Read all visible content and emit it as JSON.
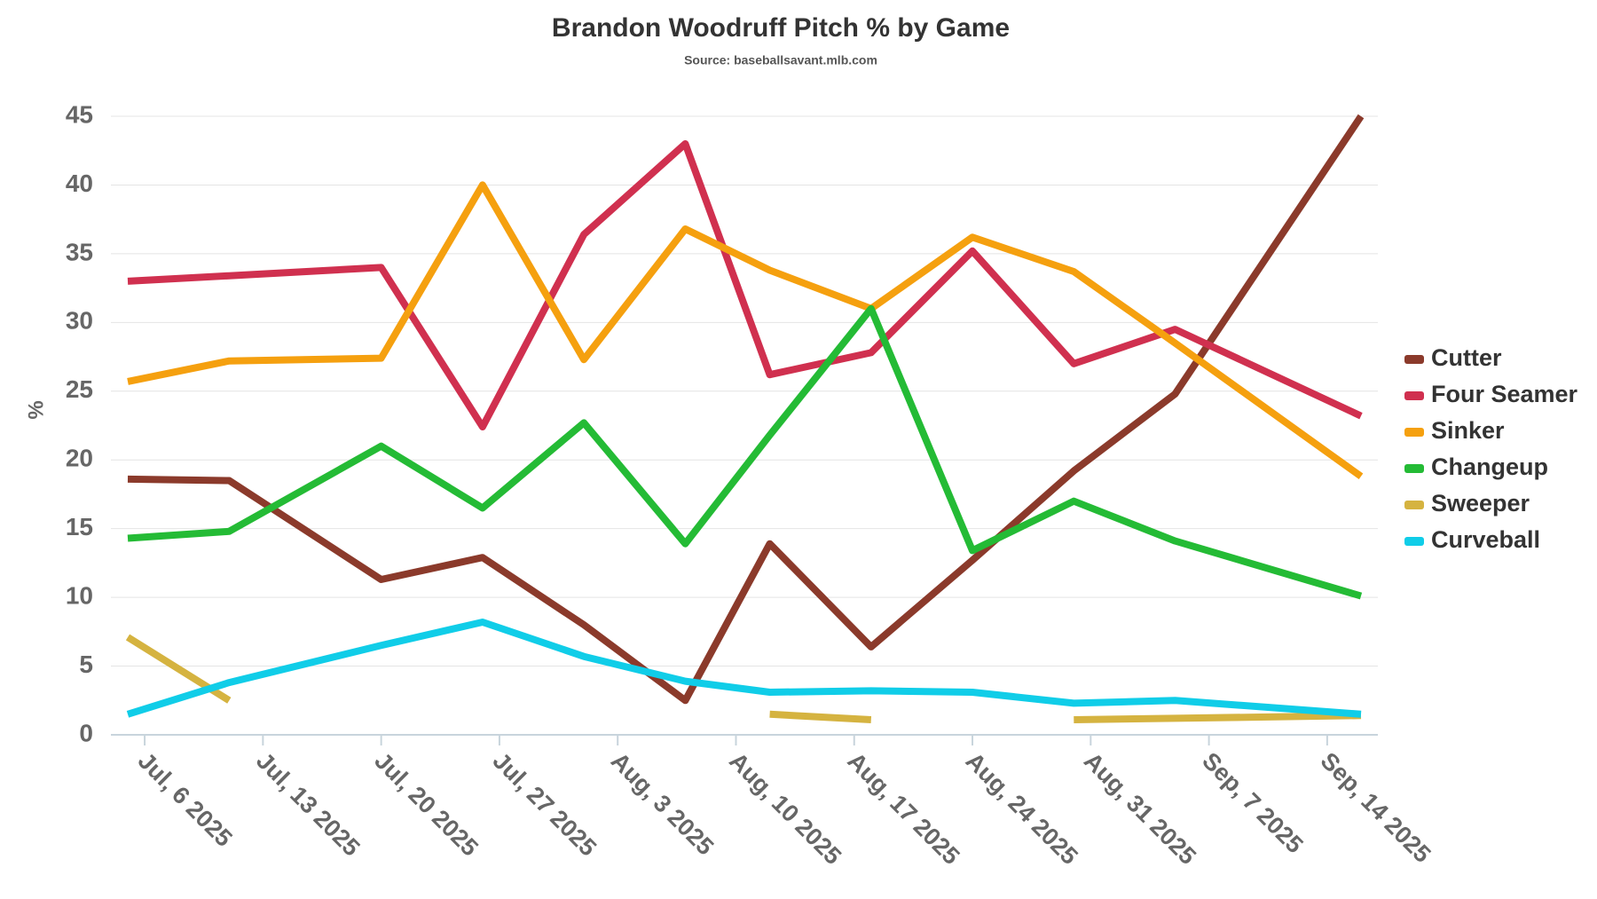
{
  "chart_data": {
    "type": "line",
    "title": "Brandon Woodruff Pitch % by Game",
    "subtitle": "Source: baseballsavant.mlb.com",
    "y_label": "%",
    "x": [
      "2025-07-05",
      "2025-07-11",
      "2025-07-20",
      "2025-07-26",
      "2025-08-01",
      "2025-08-07",
      "2025-08-12",
      "2025-08-18",
      "2025-08-24",
      "2025-08-30",
      "2025-09-05",
      "2025-09-16"
    ],
    "xlim": [
      "2025-07-04",
      "2025-09-17"
    ],
    "xticks": [
      {
        "value": "2025-07-06",
        "label": "Jul, 6 2025"
      },
      {
        "value": "2025-07-13",
        "label": "Jul, 13 2025"
      },
      {
        "value": "2025-07-20",
        "label": "Jul, 20 2025"
      },
      {
        "value": "2025-07-27",
        "label": "Jul, 27 2025"
      },
      {
        "value": "2025-08-03",
        "label": "Aug, 3 2025"
      },
      {
        "value": "2025-08-10",
        "label": "Aug, 10 2025"
      },
      {
        "value": "2025-08-17",
        "label": "Aug, 17 2025"
      },
      {
        "value": "2025-08-24",
        "label": "Aug, 24 2025"
      },
      {
        "value": "2025-08-31",
        "label": "Aug, 31 2025"
      },
      {
        "value": "2025-09-07",
        "label": "Sep, 7 2025"
      },
      {
        "value": "2025-09-14",
        "label": "Sep, 14 2025"
      }
    ],
    "ylim": [
      0,
      45
    ],
    "yticks": [
      0,
      5,
      10,
      15,
      20,
      25,
      30,
      35,
      40,
      45
    ],
    "grid": true,
    "legend": "right",
    "series": [
      {
        "name": "Cutter",
        "color": "#8b3a2b",
        "values": [
          18.6,
          18.5,
          11.3,
          12.9,
          8,
          2.5,
          13.9,
          6.4,
          12.7,
          19.2,
          24.8,
          45
        ]
      },
      {
        "name": "Four Seamer",
        "color": "#d0304f",
        "values": [
          33,
          33.4,
          34,
          22.4,
          36.4,
          43,
          26.2,
          27.8,
          35.2,
          27,
          29.5,
          23.2
        ]
      },
      {
        "name": "Sinker",
        "color": "#f5a00f",
        "values": [
          25.7,
          27.2,
          27.4,
          40,
          27.3,
          36.8,
          33.8,
          31,
          36.2,
          33.7,
          28.5,
          18.8
        ]
      },
      {
        "name": "Changeup",
        "color": "#24bb35",
        "values": [
          14.3,
          14.8,
          21,
          16.5,
          22.7,
          13.9,
          21.8,
          31,
          13.4,
          17,
          14.1,
          10.1
        ]
      },
      {
        "name": "Sweeper",
        "color": "#d5b340",
        "values": [
          7.1,
          2.5,
          null,
          null,
          null,
          null,
          1.5,
          1.1,
          null,
          1.1,
          1.2,
          1.4
        ]
      },
      {
        "name": "Curveball",
        "color": "#10cde8",
        "values": [
          1.5,
          3.8,
          6.5,
          8.2,
          5.7,
          3.9,
          3.1,
          3.2,
          3.1,
          2.3,
          2.5,
          1.5
        ]
      }
    ]
  }
}
